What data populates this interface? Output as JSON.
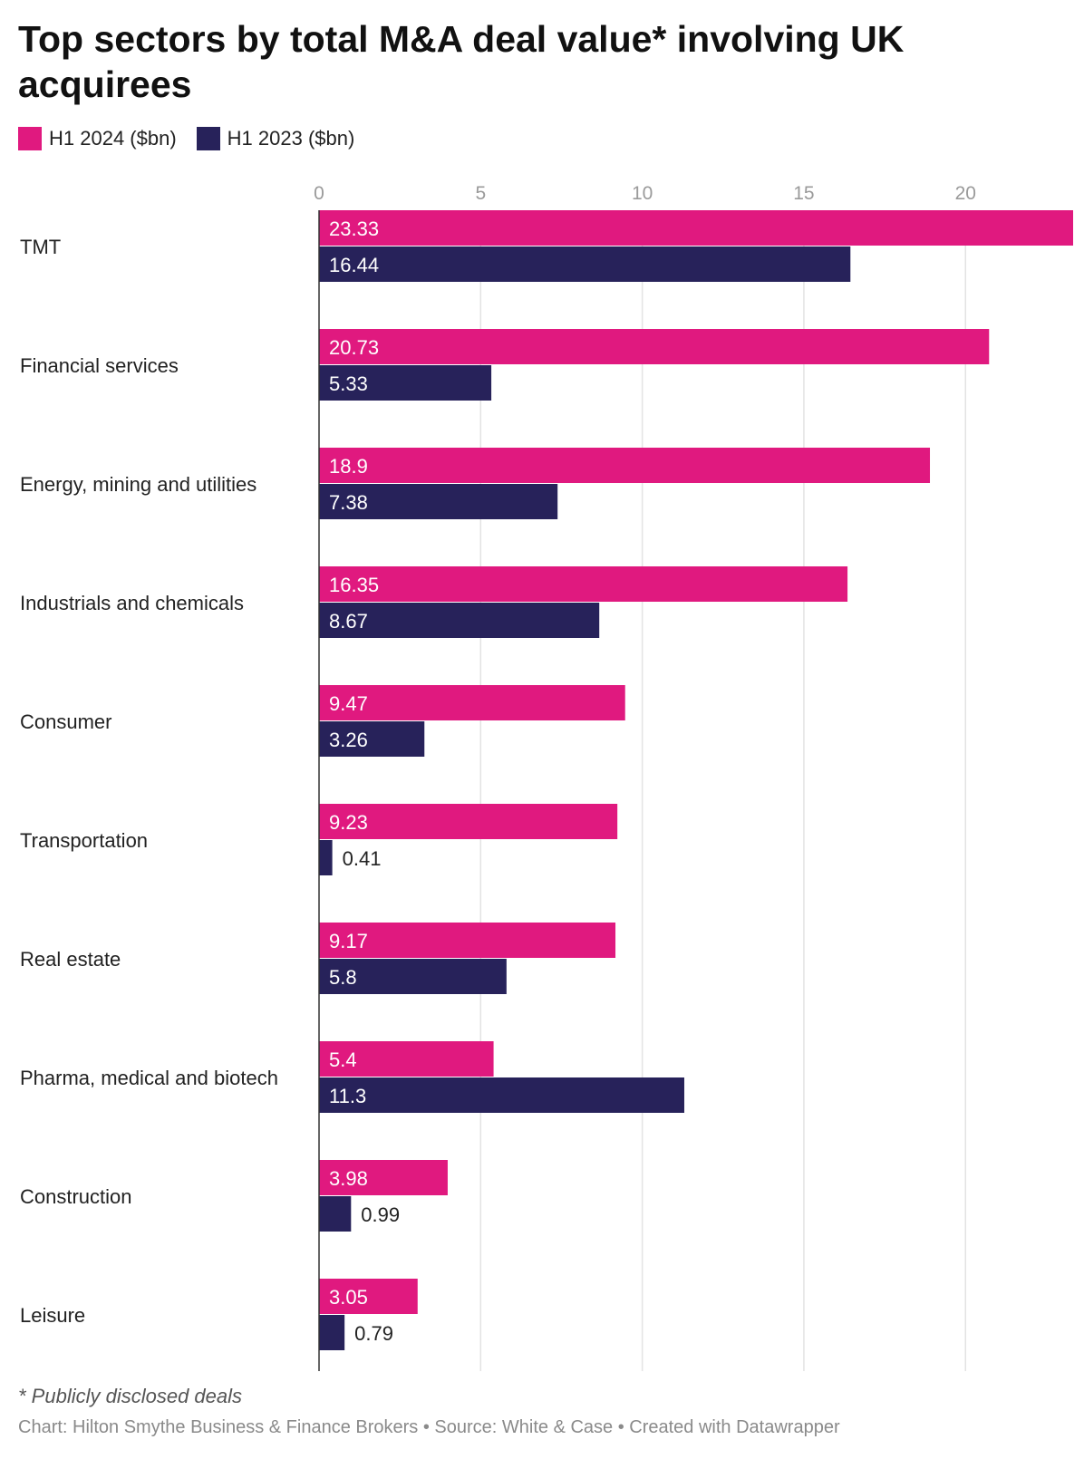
{
  "title": "Top sectors by total M&A deal value* involving UK acquirees",
  "legend": [
    {
      "label": "H1 2024 ($bn)",
      "color": "#e0197f"
    },
    {
      "label": "H1 2023 ($bn)",
      "color": "#27225a"
    }
  ],
  "note": "* Publicly disclosed deals",
  "footer": "Chart: Hilton Smythe Business & Finance Brokers • Source: White & Case • Created with Datawrapper",
  "chart_data": {
    "type": "bar",
    "orientation": "horizontal",
    "categories": [
      "TMT",
      "Financial services",
      "Energy, mining and utilities",
      "Industrials and chemicals",
      "Consumer",
      "Transportation",
      "Real estate",
      "Pharma, medical and biotech",
      "Construction",
      "Leisure"
    ],
    "series": [
      {
        "name": "H1 2024 ($bn)",
        "color": "#e0197f",
        "values": [
          23.33,
          20.73,
          18.9,
          16.35,
          9.47,
          9.23,
          9.17,
          5.4,
          3.98,
          3.05
        ]
      },
      {
        "name": "H1 2023 ($bn)",
        "color": "#27225a",
        "values": [
          16.44,
          5.33,
          7.38,
          8.67,
          3.26,
          0.41,
          5.8,
          11.3,
          0.99,
          0.79
        ]
      }
    ],
    "ticks": [
      0,
      5,
      10,
      15,
      20
    ],
    "xlim": [
      0,
      23.33
    ],
    "grid": true,
    "legend_position": "top-left"
  }
}
